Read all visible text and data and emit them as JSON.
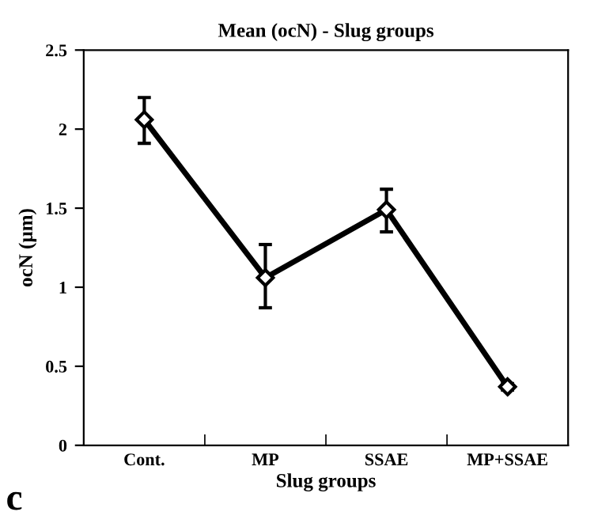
{
  "chart_data": {
    "type": "line",
    "title": "Mean (ocN) - Slug groups",
    "xlabel": "Slug groups",
    "ylabel": "ocN (µm)",
    "categories": [
      "Cont.",
      "MP",
      "SSAE",
      "MP+SSAE"
    ],
    "series": [
      {
        "color": "#000000",
        "values": [
          2.06,
          1.06,
          1.49,
          0.37
        ],
        "errors": [
          [
            1.91,
            2.2
          ],
          [
            0.87,
            1.27
          ],
          [
            1.35,
            1.62
          ],
          [
            0.35,
            0.39
          ]
        ]
      }
    ],
    "ylim": [
      0,
      2.5
    ],
    "yticks": [
      0,
      0.5,
      1,
      1.5,
      2,
      2.5
    ],
    "marker": "diamond",
    "line_style": "solid",
    "grid": false,
    "legend": false,
    "annotations": [
      "c"
    ]
  }
}
